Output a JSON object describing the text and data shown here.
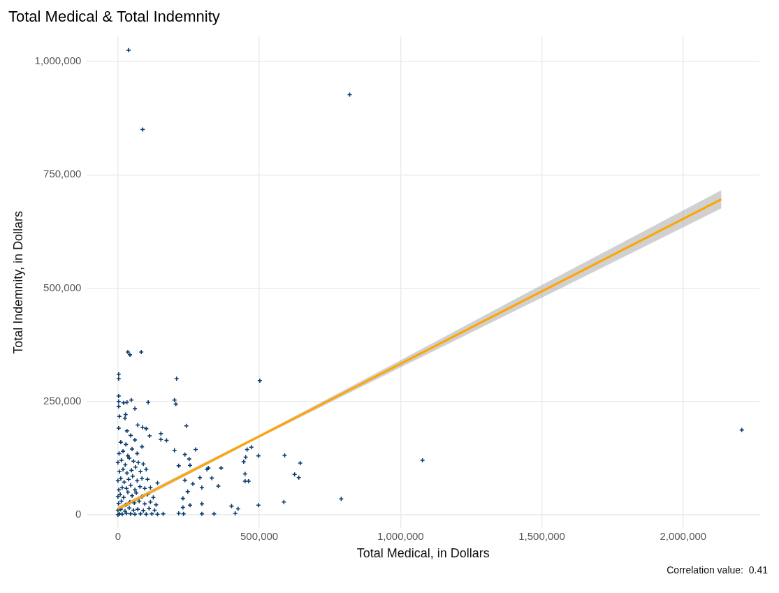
{
  "chart_data": {
    "type": "scatter",
    "title": "Total Medical & Total Indemnity",
    "xlabel": "Total Medical, in Dollars",
    "ylabel": "Total Indemnity, in Dollars",
    "annotations": [
      "Correlation value:  0.41"
    ],
    "xlim": [
      -110000,
      2270000
    ],
    "ylim": [
      -30000,
      1055000
    ],
    "xticks": [
      0,
      {
        "value": 500000,
        "label": "500,000"
      },
      {
        "value": 1000000,
        "label": "1,000,000"
      },
      {
        "value": 1500000,
        "label": "1,500,000"
      },
      {
        "value": 2000000,
        "label": "2,000,000"
      }
    ],
    "yticks": [
      0,
      {
        "value": 250000,
        "label": "250,000"
      },
      {
        "value": 500000,
        "label": "500,000"
      },
      {
        "value": 750000,
        "label": "750,000"
      },
      {
        "value": 1000000,
        "label": "1,000,000"
      }
    ],
    "grid": true,
    "legend": false,
    "series": [
      {
        "marker": "cross",
        "color": "#0b3b6b",
        "x": [
          0,
          5000,
          15000,
          30000,
          45000,
          60000,
          80000,
          100000,
          120000,
          140000,
          160000,
          0,
          10000,
          25000,
          40000,
          55000,
          70000,
          90000,
          110000,
          130000,
          2000,
          12000,
          28000,
          42000,
          58000,
          75000,
          95000,
          115000,
          135000,
          0,
          8000,
          20000,
          35000,
          50000,
          65000,
          85000,
          105000,
          125000,
          3000,
          15000,
          30000,
          45000,
          60000,
          78000,
          95000,
          115000,
          0,
          10000,
          22000,
          38000,
          52000,
          68000,
          85000,
          105000,
          140000,
          5000,
          18000,
          32000,
          48000,
          62000,
          80000,
          100000,
          0,
          12000,
          26000,
          40000,
          55000,
          72000,
          90000,
          4000,
          18000,
          35000,
          50000,
          68000,
          85000,
          10000,
          28000,
          60000,
          45000,
          100000,
          37500,
          87500,
          820000,
          2207500,
          1077500,
          790000,
          35000,
          42500,
          82500,
          2500,
          2500,
          207500,
          2500,
          2500,
          2500,
          20000,
          32000,
          47500,
          107000,
          200000,
          205000,
          60000,
          5000,
          27000,
          25000,
          242000,
          502000,
          2500,
          70000,
          87000,
          32000,
          152000,
          152000,
          172000,
          112000,
          200000,
          275000,
          237000,
          252000,
          255000,
          215000,
          365000,
          320000,
          315000,
          290000,
          332000,
          237000,
          265000,
          355000,
          297000,
          247000,
          230000,
          297000,
          255000,
          230000,
          215000,
          232000,
          297000,
          340000,
          402000,
          425000,
          415000,
          497000,
          587000,
          445000,
          452000,
          457000,
          472000,
          497000,
          450000,
          450000,
          462000,
          590000,
          645000,
          625000,
          640000
        ],
        "values": [
          0,
          2000,
          1000,
          3000,
          2000,
          1000,
          2000,
          1000,
          2000,
          1000,
          2000,
          10000,
          12000,
          8000,
          15000,
          10000,
          12000,
          9000,
          14000,
          10000,
          25000,
          30000,
          22000,
          28000,
          26000,
          30000,
          24000,
          28000,
          22000,
          40000,
          45000,
          38000,
          50000,
          42000,
          48000,
          40000,
          45000,
          38000,
          55000,
          60000,
          58000,
          65000,
          55000,
          62000,
          58000,
          60000,
          75000,
          80000,
          72000,
          78000,
          85000,
          75000,
          80000,
          78000,
          70000,
          95000,
          100000,
          92000,
          98000,
          105000,
          95000,
          100000,
          115000,
          120000,
          110000,
          125000,
          118000,
          115000,
          112000,
          135000,
          140000,
          130000,
          145000,
          135000,
          150000,
          160000,
          155000,
          165000,
          175000,
          190000,
          1025000,
          850000,
          927000,
          187000,
          120000,
          35000,
          359000,
          353000,
          359000,
          310000,
          300000,
          300000,
          262000,
          239000,
          250000,
          247000,
          248000,
          253000,
          248000,
          253000,
          244000,
          234000,
          217000,
          221000,
          213000,
          196000,
          296000,
          191000,
          198000,
          193000,
          185000,
          179000,
          166000,
          164000,
          174000,
          142000,
          144000,
          133000,
          123000,
          109000,
          108000,
          103000,
          103000,
          100000,
          82000,
          81000,
          76000,
          68000,
          63000,
          60000,
          51000,
          36000,
          24000,
          21000,
          16000,
          3000,
          2000,
          2000,
          2000,
          19000,
          13000,
          3000,
          21000,
          28000,
          117000,
          127000,
          144000,
          149000,
          130000,
          90000,
          74000,
          74000,
          131000,
          114000,
          89000,
          82000
        ]
      },
      {
        "type": "line",
        "color": "#ffa500",
        "x": [
          0,
          500000,
          1000000,
          1500000,
          2135000
        ],
        "values": [
          13000,
          173000,
          333000,
          493000,
          696000
        ],
        "lower": [
          8000,
          170000,
          325000,
          479000,
          676000
        ],
        "upper": [
          18000,
          176000,
          341000,
          507000,
          716000
        ]
      }
    ]
  }
}
